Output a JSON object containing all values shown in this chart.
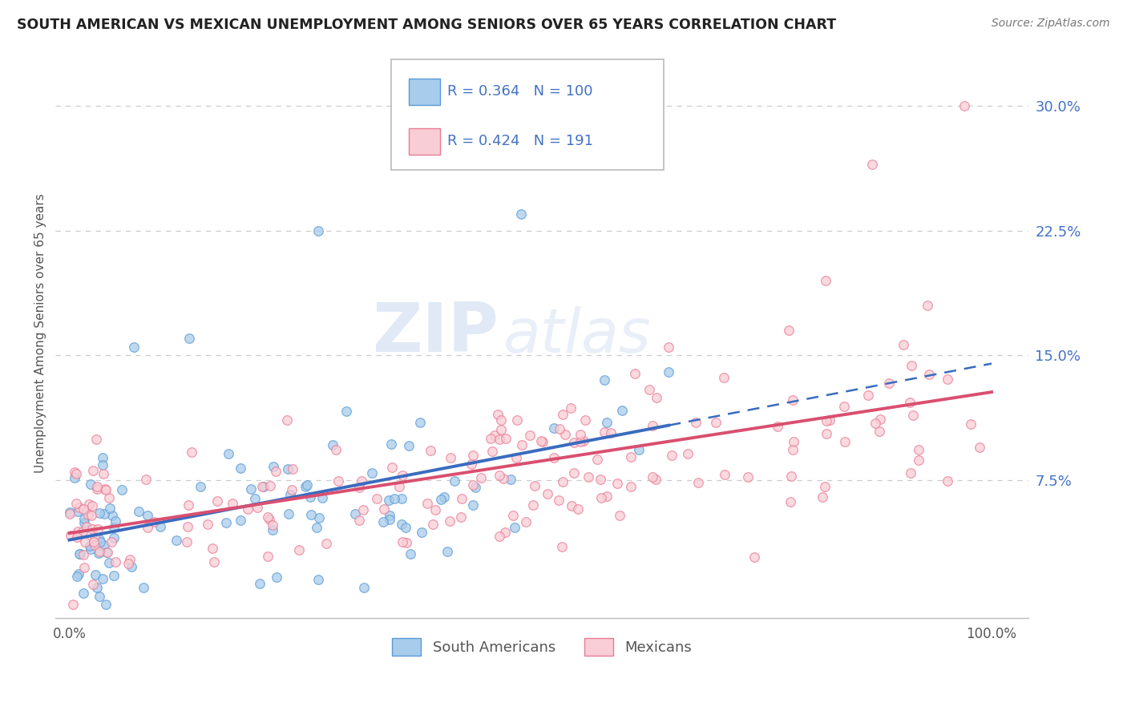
{
  "title": "SOUTH AMERICAN VS MEXICAN UNEMPLOYMENT AMONG SENIORS OVER 65 YEARS CORRELATION CHART",
  "source": "Source: ZipAtlas.com",
  "ylabel": "Unemployment Among Seniors over 65 years",
  "ytick_labels": [
    "7.5%",
    "15.0%",
    "22.5%",
    "30.0%"
  ],
  "ytick_values": [
    0.075,
    0.15,
    0.225,
    0.3
  ],
  "blue_scatter_color": "#a8cceb",
  "blue_edge_color": "#5b9bd5",
  "pink_scatter_color": "#f9cdd5",
  "pink_edge_color": "#e87c96",
  "trendline_blue": "#3a6bbf",
  "trendline_pink": "#d94f70",
  "R_blue": 0.364,
  "N_blue": 100,
  "R_pink": 0.424,
  "N_pink": 191,
  "watermark_zip": "ZIP",
  "watermark_atlas": "atlas",
  "bg_color": "#ffffff",
  "grid_color": "#cccccc",
  "label_color": "#4472c4",
  "title_color": "#222222",
  "axis_label_color": "#555555"
}
